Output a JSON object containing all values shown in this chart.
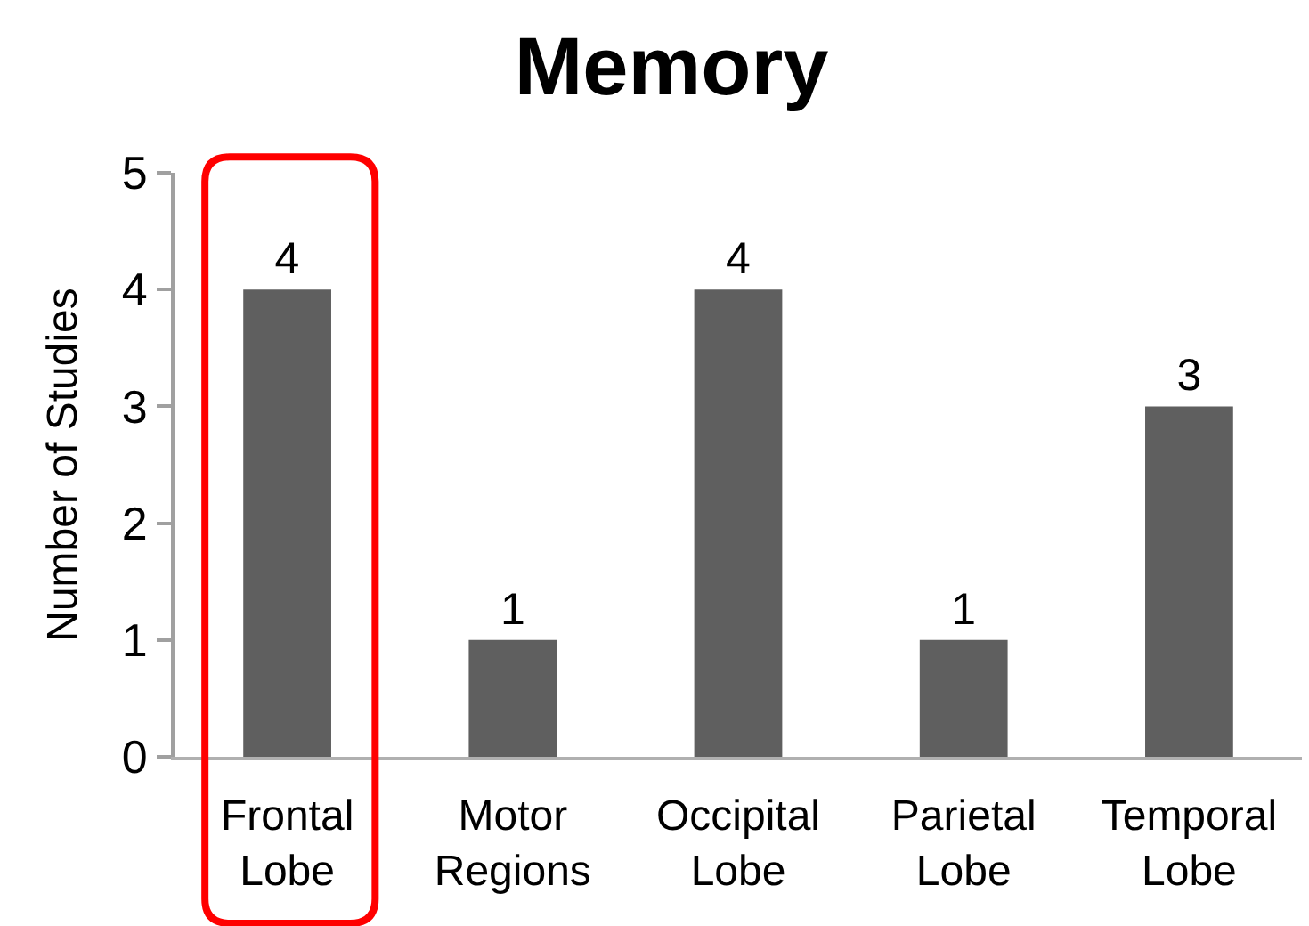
{
  "chart_data": {
    "type": "bar",
    "title": "Memory",
    "ylabel": "Number of Studies",
    "categories": [
      "Frontal Lobe",
      "Motor Regions",
      "Occipital Lobe",
      "Parietal Lobe",
      "Temporal Lobe"
    ],
    "values": [
      4,
      1,
      4,
      1,
      3
    ],
    "color": "#5f5f5f",
    "data_labels": true,
    "ylim": [
      0,
      5
    ],
    "yticks": [
      0,
      1,
      2,
      3,
      4,
      5
    ],
    "grid": false
  }
}
